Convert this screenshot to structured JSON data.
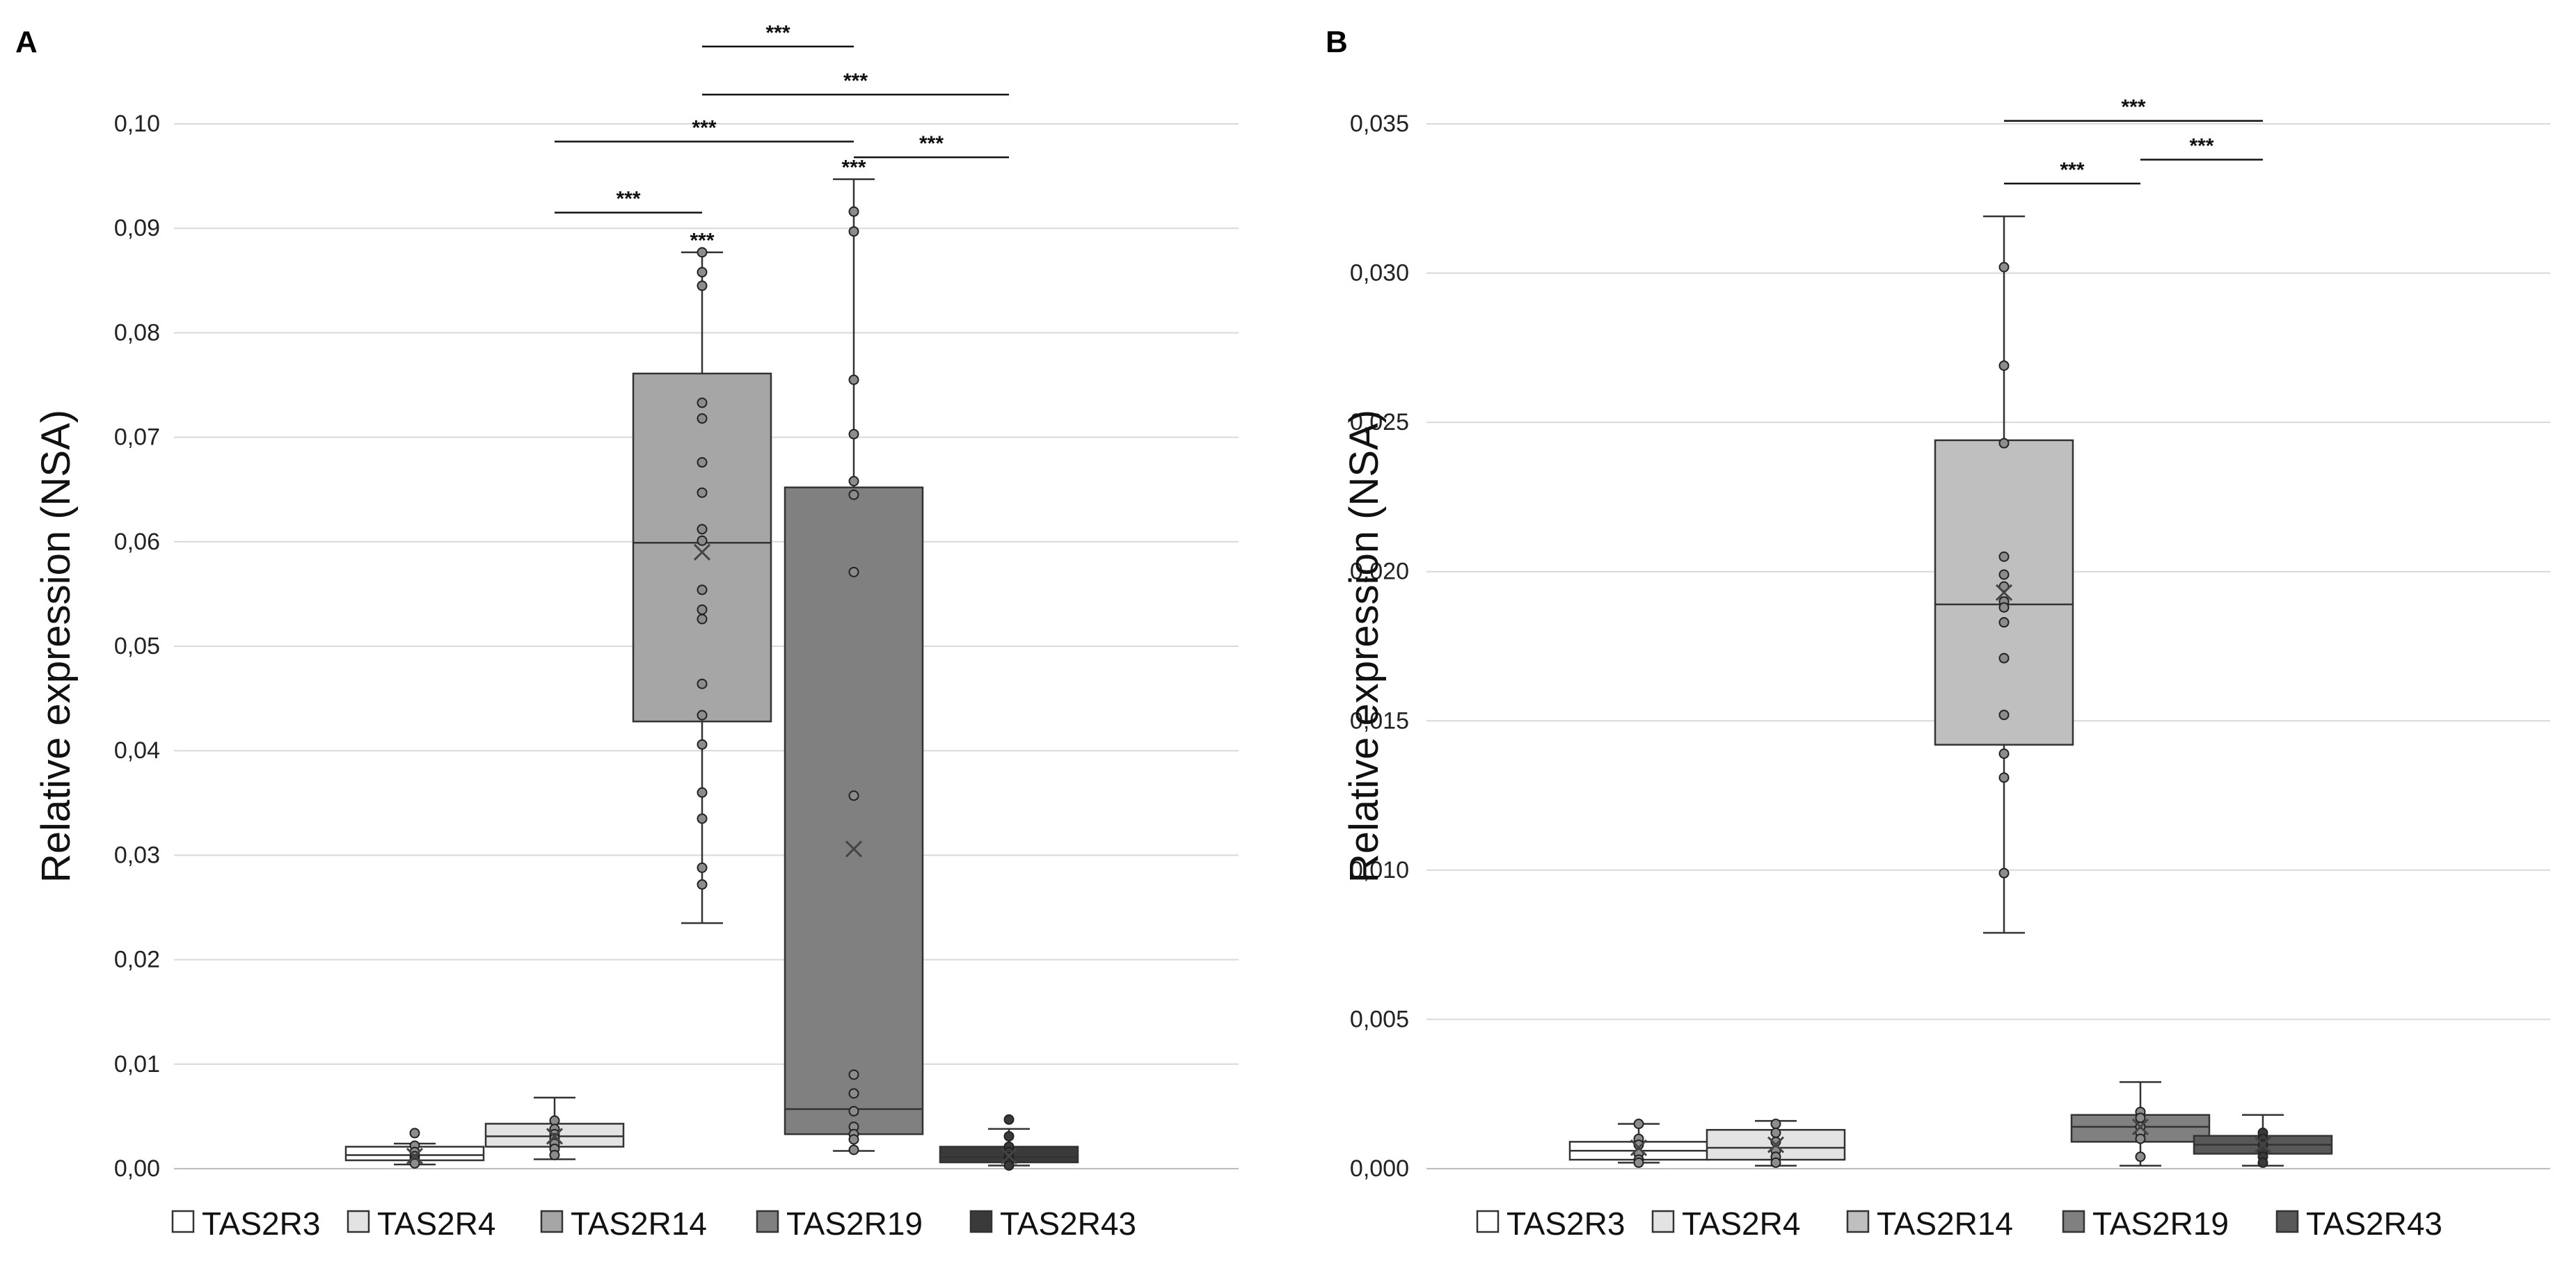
{
  "chart_data": [
    {
      "type": "box",
      "panel_label": "A",
      "ylabel": "Relative expression (NSA)",
      "ylim": [
        0,
        0.1
      ],
      "yticks": [
        "0,00",
        "0,01",
        "0,02",
        "0,03",
        "0,04",
        "0,05",
        "0,06",
        "0,07",
        "0,08",
        "0,09",
        "0,10"
      ],
      "legend": [
        "TAS2R3",
        "TAS2R4",
        "TAS2R14",
        "TAS2R19",
        "TAS2R43"
      ],
      "series": [
        {
          "name": "TAS2R3",
          "color": "#ffffff",
          "q1": 0.0008,
          "median": 0.0013,
          "q3": 0.0021,
          "whisker_low": 0.0004,
          "whisker_high": 0.0024,
          "mean": 0.0012,
          "points": [
            0.0034,
            0.0022,
            0.0016,
            0.0012,
            0.0009,
            0.0007,
            0.0005
          ]
        },
        {
          "name": "TAS2R4",
          "color": "#e3e3e3",
          "q1": 0.0021,
          "median": 0.0031,
          "q3": 0.0043,
          "whisker_low": 0.0009,
          "whisker_high": 0.0068,
          "mean": 0.0031,
          "points": [
            0.0046,
            0.0038,
            0.0033,
            0.0029,
            0.0024,
            0.0019,
            0.0013
          ]
        },
        {
          "name": "TAS2R14",
          "color": "#a6a6a6",
          "q1": 0.0428,
          "median": 0.0599,
          "q3": 0.0761,
          "whisker_low": 0.0235,
          "whisker_high": 0.0877,
          "mean": 0.059,
          "points": [
            0.0877,
            0.0858,
            0.0845,
            0.0733,
            0.0718,
            0.0676,
            0.0647,
            0.0612,
            0.0601,
            0.0554,
            0.0535,
            0.0526,
            0.0464,
            0.0434,
            0.0406,
            0.036,
            0.0335,
            0.0288,
            0.0272
          ]
        },
        {
          "name": "TAS2R19",
          "color": "#808080",
          "q1": 0.0033,
          "median": 0.0057,
          "q3": 0.0652,
          "whisker_low": 0.0017,
          "whisker_high": 0.0947,
          "mean": 0.0306,
          "points": [
            0.0916,
            0.0897,
            0.0755,
            0.0703,
            0.0658,
            0.0645,
            0.0571,
            0.0357,
            0.009,
            0.0072,
            0.0055,
            0.004,
            0.0033,
            0.0028,
            0.0018
          ]
        },
        {
          "name": "TAS2R43",
          "color": "#3a3a3a",
          "q1": 0.0006,
          "median": 0.0011,
          "q3": 0.0021,
          "whisker_low": 0.0003,
          "whisker_high": 0.0038,
          "mean": 0.0012,
          "points": [
            0.0047,
            0.0031,
            0.0021,
            0.0016,
            0.0011,
            0.0008,
            0.0005,
            0.0003
          ]
        }
      ],
      "star_labels": [
        {
          "box": "TAS2R14",
          "value": 0.0887,
          "text": "***"
        },
        {
          "box": "TAS2R19",
          "value": 0.0957,
          "text": "***"
        }
      ],
      "significance": [
        {
          "from": "TAS2R4",
          "to": "TAS2R14",
          "y": 0.0915,
          "label": "***"
        },
        {
          "from": "TAS2R4",
          "to": "TAS2R19",
          "y": 0.0983,
          "label": "***"
        },
        {
          "from": "TAS2R14",
          "to": "TAS2R43",
          "y": 0.1028,
          "label": "***"
        },
        {
          "from": "TAS2R14",
          "to": "TAS2R19",
          "y": 0.1074,
          "label": "***"
        },
        {
          "from": "TAS2R19",
          "to": "TAS2R43",
          "y": 0.0968,
          "label": "***"
        }
      ]
    },
    {
      "type": "box",
      "panel_label": "B",
      "ylabel": "Relative expression (NSA)",
      "ylim": [
        0,
        0.035
      ],
      "yticks": [
        "0,000",
        "0,005",
        "0,010",
        "0,015",
        "0,020",
        "0,025",
        "0,030",
        "0,035"
      ],
      "legend": [
        "TAS2R3",
        "TAS2R4",
        "TAS2R14",
        "TAS2R19",
        "TAS2R43"
      ],
      "series": [
        {
          "name": "TAS2R3",
          "color": "#ffffff",
          "q1": 0.0003,
          "median": 0.0006,
          "q3": 0.0009,
          "whisker_low": 0.0002,
          "whisker_high": 0.0015,
          "mean": 0.0007,
          "points": [
            0.0015,
            0.001,
            0.0008,
            0.0005,
            0.0003,
            0.0002
          ]
        },
        {
          "name": "TAS2R4",
          "color": "#e3e3e3",
          "q1": 0.0003,
          "median": 0.0007,
          "q3": 0.0013,
          "whisker_low": 0.0001,
          "whisker_high": 0.0016,
          "mean": 0.0008,
          "points": [
            0.0015,
            0.0012,
            0.0009,
            0.0006,
            0.0004,
            0.0002
          ]
        },
        {
          "name": "TAS2R14",
          "color": "#bfbfbf",
          "q1": 0.0142,
          "median": 0.0189,
          "q3": 0.0244,
          "whisker_low": 0.0079,
          "whisker_high": 0.0319,
          "mean": 0.0193,
          "points": [
            0.0302,
            0.0269,
            0.0243,
            0.0205,
            0.0199,
            0.0195,
            0.019,
            0.0188,
            0.0183,
            0.0171,
            0.0152,
            0.0139,
            0.0131,
            0.0099
          ]
        },
        {
          "name": "TAS2R19",
          "color": "#808080",
          "q1": 0.0009,
          "median": 0.0014,
          "q3": 0.0018,
          "whisker_low": 0.0001,
          "whisker_high": 0.0029,
          "mean": 0.0014,
          "points": [
            0.0019,
            0.0017,
            0.0014,
            0.0012,
            0.001,
            0.0004
          ]
        },
        {
          "name": "TAS2R43",
          "color": "#595959",
          "q1": 0.0005,
          "median": 0.0008,
          "q3": 0.0011,
          "whisker_low": 0.0001,
          "whisker_high": 0.0018,
          "mean": 0.0008,
          "points": [
            0.0012,
            0.001,
            0.0008,
            0.0006,
            0.0004,
            0.0002
          ]
        }
      ],
      "star_labels": [],
      "significance": [
        {
          "from": "TAS2R14",
          "to": "TAS2R19",
          "y": 0.033,
          "label": "***"
        },
        {
          "from": "TAS2R19",
          "to": "TAS2R43",
          "y": 0.0338,
          "label": "***"
        },
        {
          "from": "TAS2R14",
          "to": "TAS2R43",
          "y": 0.0351,
          "label": "***"
        }
      ]
    }
  ]
}
